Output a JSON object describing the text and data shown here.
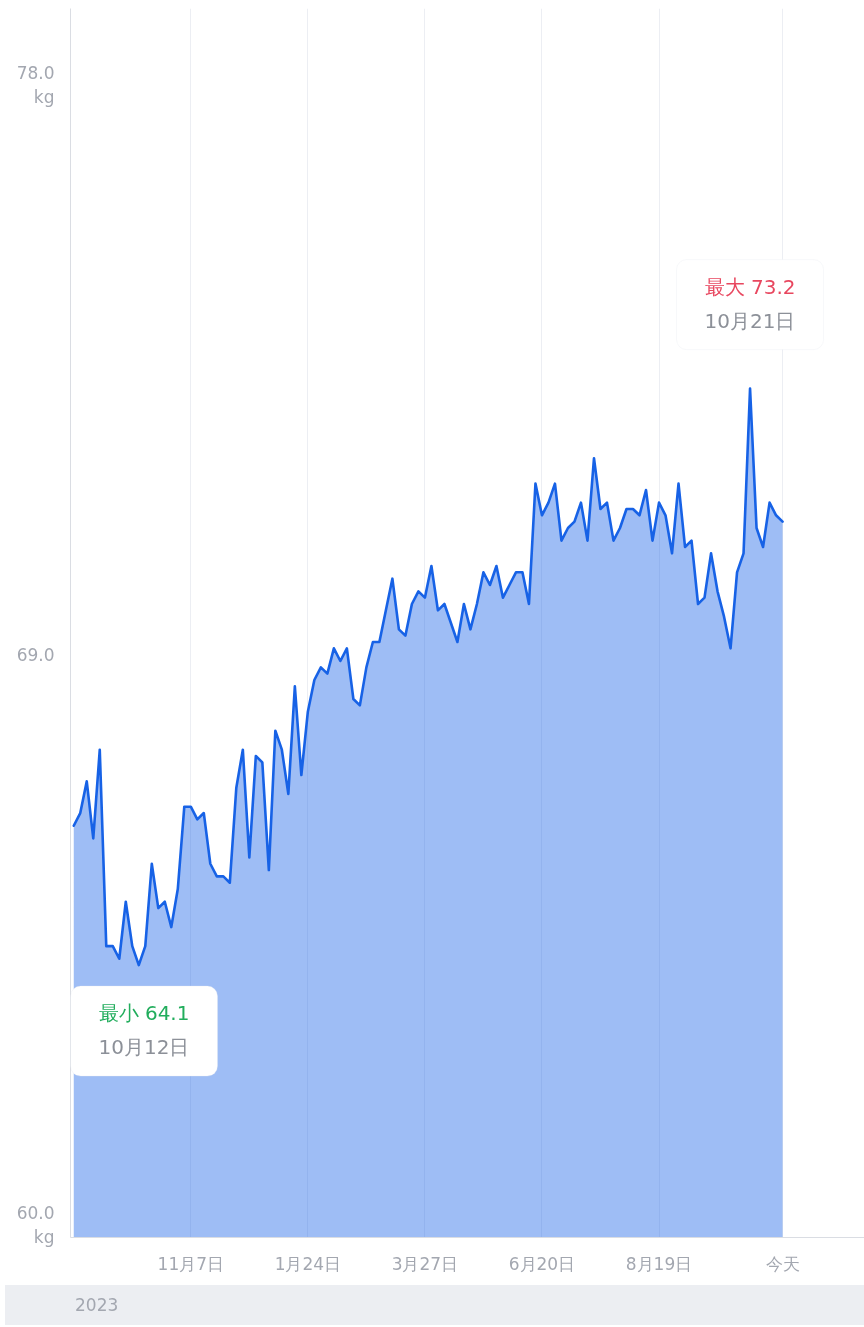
{
  "chart_data": {
    "type": "area",
    "categories": [
      null,
      null,
      null,
      null,
      null,
      null,
      null,
      null,
      null,
      null,
      null,
      null,
      null,
      null,
      null,
      null,
      null,
      null,
      "11月7日",
      null,
      null,
      null,
      null,
      null,
      null,
      null,
      null,
      null,
      null,
      null,
      null,
      null,
      null,
      null,
      null,
      null,
      "1月24日",
      null,
      null,
      null,
      null,
      null,
      null,
      null,
      null,
      null,
      null,
      null,
      null,
      null,
      null,
      null,
      null,
      null,
      "3月27日",
      null,
      null,
      null,
      null,
      null,
      null,
      null,
      null,
      null,
      null,
      null,
      null,
      null,
      null,
      null,
      null,
      null,
      "6月20日",
      null,
      null,
      null,
      null,
      null,
      null,
      null,
      null,
      null,
      null,
      null,
      null,
      null,
      null,
      null,
      null,
      null,
      "8月19日",
      null,
      null,
      null,
      null,
      null,
      null,
      null,
      null,
      null,
      null,
      null,
      null,
      null,
      null,
      null,
      null,
      null,
      null,
      "今天"
    ],
    "series": [
      {
        "color": "#1762e6",
        "values": [
          66.3,
          66.5,
          67.0,
          66.1,
          67.5,
          64.4,
          64.4,
          64.2,
          65.1,
          64.4,
          64.1,
          64.4,
          65.7,
          65.0,
          65.1,
          64.7,
          65.3,
          66.6,
          66.6,
          66.4,
          66.5,
          65.7,
          65.5,
          65.5,
          65.4,
          66.9,
          67.5,
          65.8,
          67.4,
          67.3,
          65.6,
          67.8,
          67.5,
          66.8,
          68.5,
          67.1,
          68.1,
          68.6,
          68.8,
          68.7,
          69.1,
          68.9,
          69.1,
          68.3,
          68.2,
          68.8,
          69.2,
          69.2,
          69.7,
          70.2,
          69.4,
          69.3,
          69.8,
          70.0,
          69.9,
          70.4,
          69.7,
          69.8,
          69.5,
          69.2,
          69.8,
          69.4,
          69.8,
          70.3,
          70.1,
          70.4,
          69.9,
          70.1,
          70.3,
          70.3,
          69.8,
          71.7,
          71.2,
          71.4,
          71.7,
          70.8,
          71.0,
          71.1,
          71.4,
          70.8,
          72.1,
          71.3,
          71.4,
          70.8,
          71.0,
          71.3,
          71.3,
          71.2,
          71.6,
          70.8,
          71.4,
          71.2,
          70.6,
          71.7,
          70.7,
          70.8,
          69.8,
          69.9,
          70.6,
          70.0,
          69.6,
          69.1,
          70.3,
          70.6,
          73.2,
          71.0,
          70.7,
          71.4,
          71.2,
          71.1
        ]
      }
    ],
    "ylim": [
      59.8,
      79.2
    ],
    "yticks": [
      {
        "value": 60,
        "label": "60.0\nkg"
      },
      {
        "value": 69,
        "label": "69.0"
      },
      {
        "value": 78,
        "label": "78.0\nkg"
      }
    ],
    "grid": "x",
    "annotations": [
      {
        "text": "最大 73.2\n10月21日",
        "y": 73.2
      },
      {
        "text": "最小 64.1\n10月12日",
        "y": 64.1
      },
      "2023"
    ]
  }
}
